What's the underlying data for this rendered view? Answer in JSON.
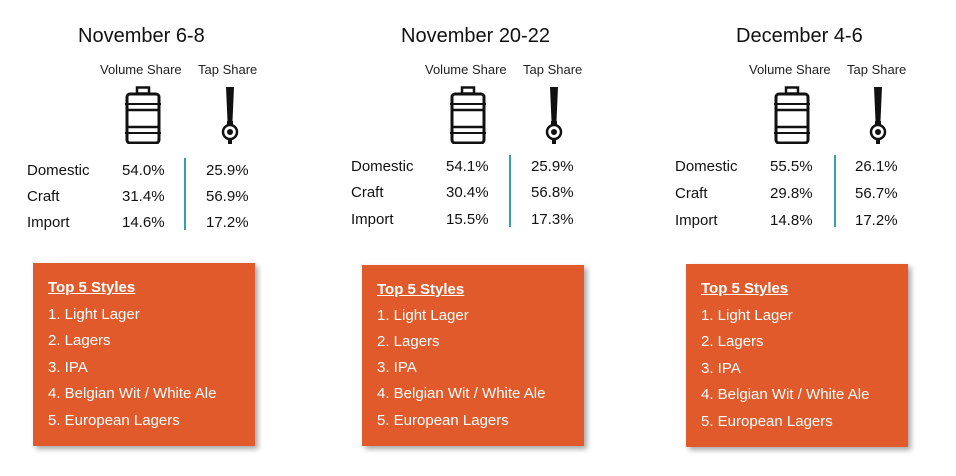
{
  "chart_data": [
    {
      "type": "table",
      "title": "November 6-8",
      "columns": [
        "Volume Share",
        "Tap Share"
      ],
      "rows": [
        {
          "label": "Domestic",
          "volume_share": "54.0%",
          "tap_share": "25.9%"
        },
        {
          "label": "Craft",
          "volume_share": "31.4%",
          "tap_share": "56.9%"
        },
        {
          "label": "Import",
          "volume_share": "14.6%",
          "tap_share": "17.2%"
        }
      ],
      "top_styles_title": "Top 5 Styles",
      "top_styles": [
        "1. Light Lager",
        "2. Lagers",
        "3. IPA",
        "4. Belgian Wit / White Ale",
        "5. European Lagers"
      ]
    },
    {
      "type": "table",
      "title": "November 20-22",
      "columns": [
        "Volume Share",
        "Tap Share"
      ],
      "rows": [
        {
          "label": "Domestic",
          "volume_share": "54.1%",
          "tap_share": "25.9%"
        },
        {
          "label": "Craft",
          "volume_share": "30.4%",
          "tap_share": "56.8%"
        },
        {
          "label": "Import",
          "volume_share": "15.5%",
          "tap_share": "17.3%"
        }
      ],
      "top_styles_title": "Top 5 Styles",
      "top_styles": [
        "1. Light Lager",
        "2. Lagers",
        "3. IPA",
        "4. Belgian Wit / White Ale",
        "5. European Lagers"
      ]
    },
    {
      "type": "table",
      "title": "December 4-6",
      "columns": [
        "Volume Share",
        "Tap Share"
      ],
      "rows": [
        {
          "label": "Domestic",
          "volume_share": "55.5%",
          "tap_share": "26.1%"
        },
        {
          "label": "Craft",
          "volume_share": "29.8%",
          "tap_share": "56.7%"
        },
        {
          "label": "Import",
          "volume_share": "14.8%",
          "tap_share": "17.2%"
        }
      ],
      "top_styles_title": "Top 5 Styles",
      "top_styles": [
        "1. Light Lager",
        "2. Lagers",
        "3. IPA",
        "4. Belgian Wit / White Ale",
        "5. European Lagers"
      ]
    }
  ],
  "icons": {
    "volume": "keg-icon",
    "tap": "beer-tap-icon"
  },
  "colors": {
    "box": "#e05a2b",
    "divider": "#3aa0a6"
  }
}
